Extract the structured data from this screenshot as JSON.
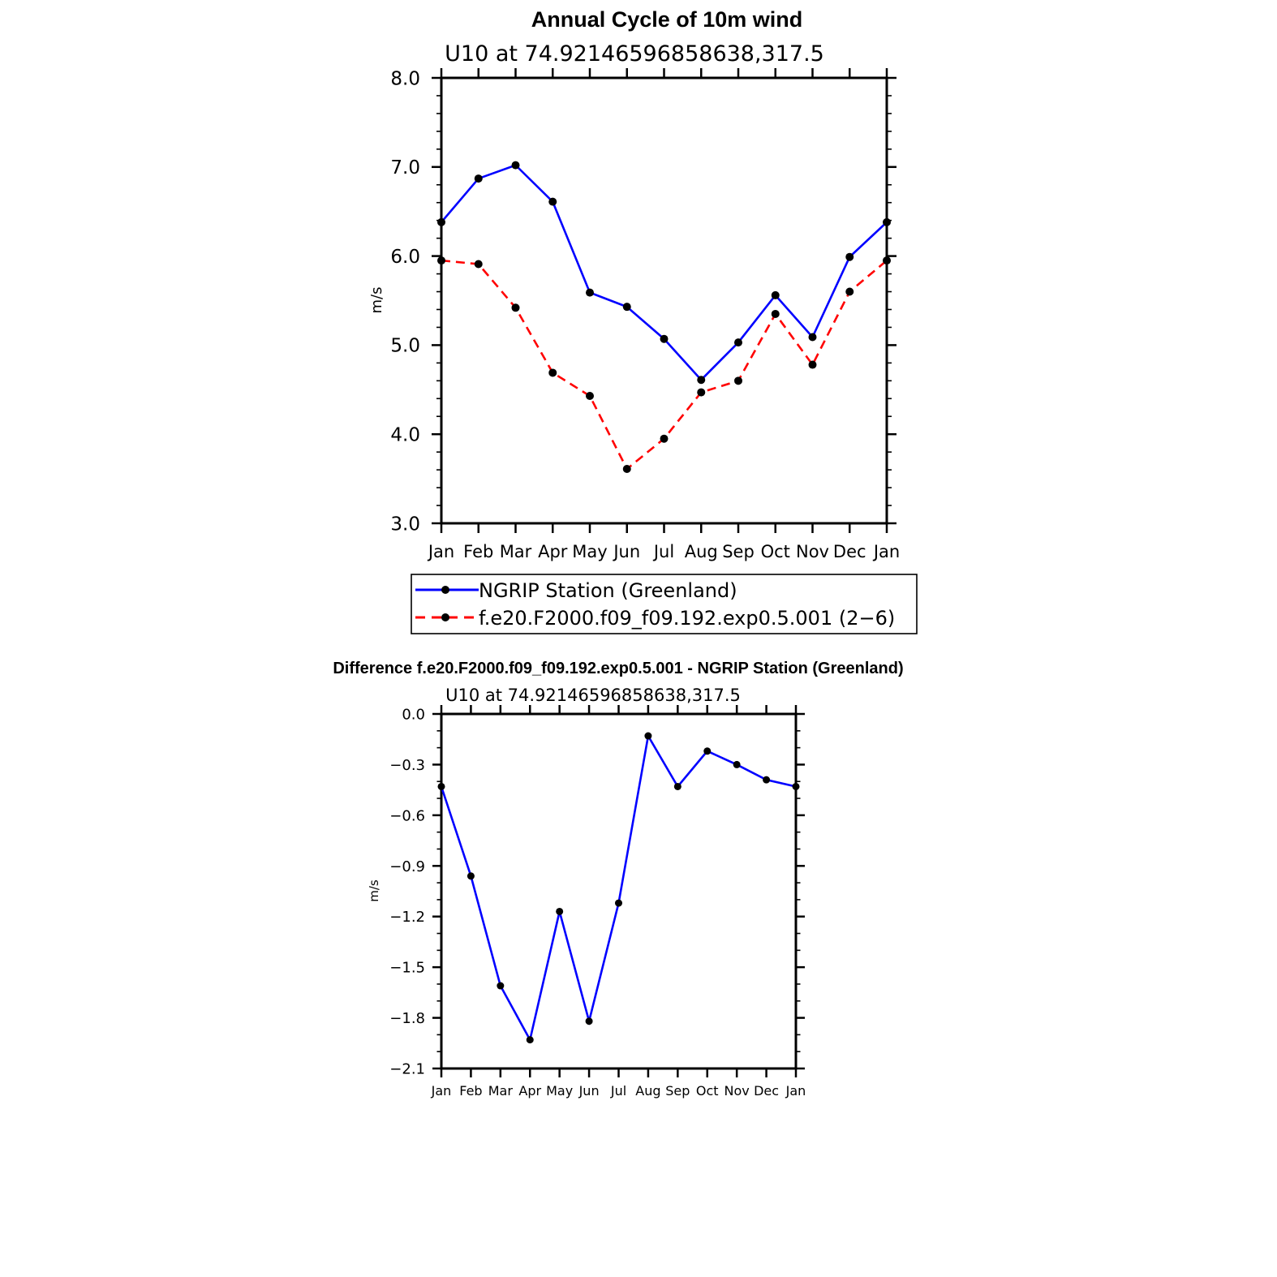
{
  "chart_data": [
    {
      "type": "line",
      "title": "Annual Cycle of 10m wind",
      "subtitle": "U10 at 74.92146596858638,317.5",
      "ylabel": "m/s",
      "xlabel": "",
      "categories": [
        "Jan",
        "Feb",
        "Mar",
        "Apr",
        "May",
        "Jun",
        "Jul",
        "Aug",
        "Sep",
        "Oct",
        "Nov",
        "Dec",
        "Jan"
      ],
      "ylim": [
        3.0,
        8.0
      ],
      "yticks": [
        "3.0",
        "4.0",
        "5.0",
        "6.0",
        "7.0",
        "8.0"
      ],
      "series": [
        {
          "name": "NGRIP Station (Greenland)",
          "color": "#0000ff",
          "dash": "solid",
          "values": [
            6.38,
            6.87,
            7.02,
            6.61,
            5.59,
            5.43,
            5.07,
            4.61,
            5.03,
            5.56,
            5.09,
            5.99,
            6.38
          ]
        },
        {
          "name": "f.e20.F2000.f09_f09.192.exp0.5.001 (2−6)",
          "color": "#ff0000",
          "dash": "dashed",
          "values": [
            5.95,
            5.91,
            5.42,
            4.69,
            4.43,
            3.61,
            3.95,
            4.47,
            4.6,
            5.35,
            4.78,
            5.6,
            5.95
          ]
        }
      ],
      "legend_position": "bottom"
    },
    {
      "type": "line",
      "title": "Difference f.e20.F2000.f09_f09.192.exp0.5.001 - NGRIP Station (Greenland)",
      "subtitle": "U10 at 74.92146596858638,317.5",
      "ylabel": "m/s",
      "xlabel": "",
      "categories": [
        "Jan",
        "Feb",
        "Mar",
        "Apr",
        "May",
        "Jun",
        "Jul",
        "Aug",
        "Sep",
        "Oct",
        "Nov",
        "Dec",
        "Jan"
      ],
      "ylim": [
        -2.1,
        0.0
      ],
      "yticks": [
        "−2.1",
        "−1.8",
        "−1.5",
        "−1.2",
        "−0.9",
        "−0.6",
        "−0.3",
        "0.0"
      ],
      "series": [
        {
          "name": "Difference",
          "color": "#0000ff",
          "dash": "solid",
          "values": [
            -0.43,
            -0.96,
            -1.61,
            -1.93,
            -1.17,
            -1.82,
            -1.12,
            -0.13,
            -0.43,
            -0.22,
            -0.3,
            -0.39,
            -0.43
          ]
        }
      ]
    }
  ]
}
